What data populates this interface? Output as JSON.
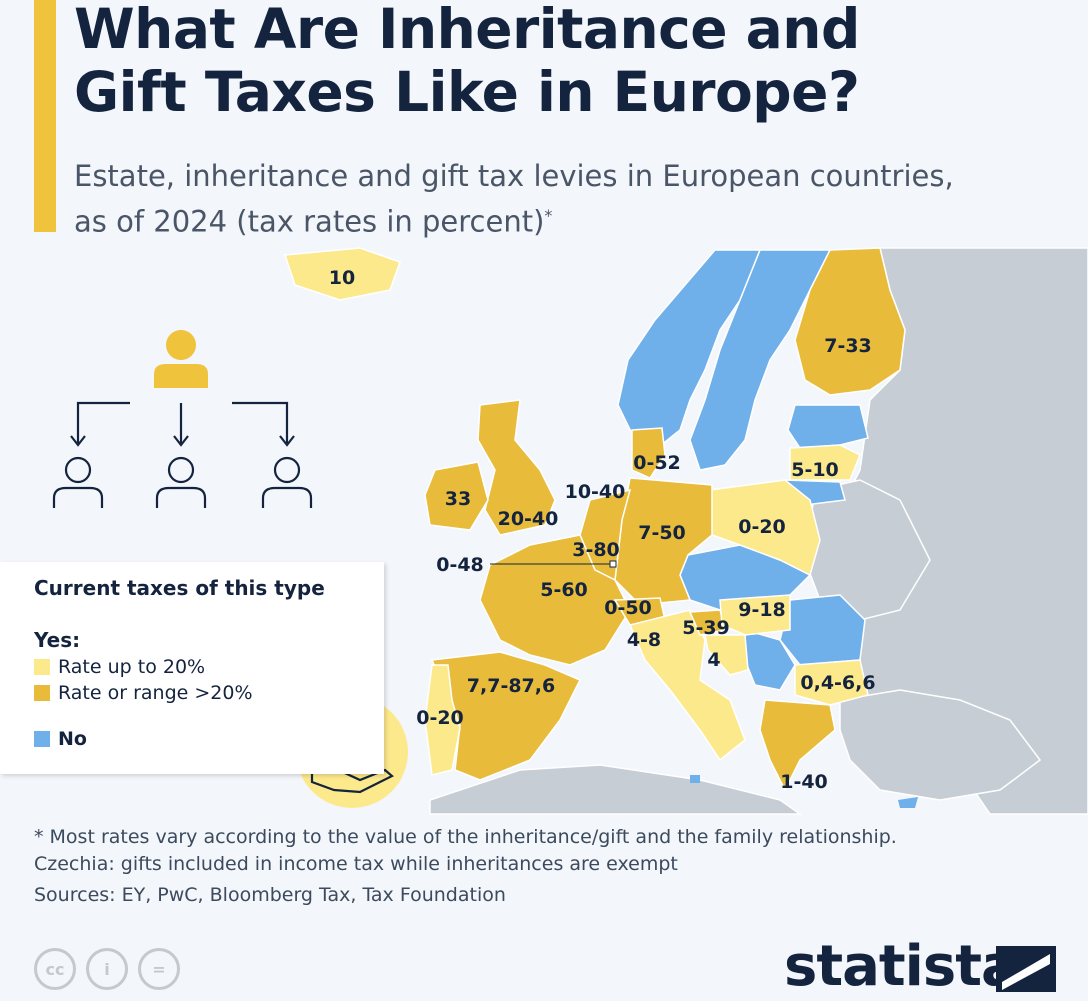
{
  "title_lines": [
    "What Are Inheritance and",
    "Gift Taxes Like in Europe?"
  ],
  "subtitle_lines": [
    "Estate, inheritance and gift tax levies in European countries,",
    "as of 2024 (tax rates in percent)"
  ],
  "subtitle_mark": "*",
  "colors": {
    "accent": "#f0c33c",
    "rate_up_to_20": "#fce98c",
    "rate_over_20": "#e8bb3a",
    "no_tax": "#6fb0ea",
    "other_land": "#c6cdd5",
    "sea": "#f3f6fa",
    "text": "#14243e"
  },
  "icons": [
    "person-icon",
    "inheritance-arrows-icon",
    "euro-coin-icon",
    "open-hand-icon",
    "cc-icon",
    "attribution-icon",
    "no-derivatives-icon",
    "statista-logo-icon"
  ],
  "map": {
    "labels": [
      {
        "country": "Iceland",
        "text": "10"
      },
      {
        "country": "Finland",
        "text": "7-33"
      },
      {
        "country": "Denmark",
        "text": "0-52"
      },
      {
        "country": "Latvia",
        "text": "5-10"
      },
      {
        "country": "Ireland",
        "text": "33"
      },
      {
        "country": "Netherlands",
        "text": "10-40"
      },
      {
        "country": "United Kingdom",
        "text": "20-40"
      },
      {
        "country": "Germany",
        "text": "7-50"
      },
      {
        "country": "Poland",
        "text": "0-20"
      },
      {
        "country": "Belgium",
        "text": "3-80"
      },
      {
        "country": "Luxembourg",
        "text": "0-48"
      },
      {
        "country": "France",
        "text": "5-60"
      },
      {
        "country": "Switzerland",
        "text": "0-50"
      },
      {
        "country": "Hungary",
        "text": "9-18"
      },
      {
        "country": "Italy",
        "text": "4-8"
      },
      {
        "country": "Slovenia",
        "text": "5-39"
      },
      {
        "country": "Croatia",
        "text": "4"
      },
      {
        "country": "Bulgaria",
        "text": "0,4-6,6"
      },
      {
        "country": "Spain",
        "text": "7,7-87,6"
      },
      {
        "country": "Portugal",
        "text": "0-20"
      },
      {
        "country": "Greece",
        "text": "1-40"
      }
    ]
  },
  "legend": {
    "title": "Current taxes of this type",
    "yes_label": "Yes:",
    "items": [
      {
        "label": "Rate up to 20%"
      },
      {
        "label": "Rate or range >20%"
      }
    ],
    "no_label": "No"
  },
  "footnote_lines": [
    "* Most rates vary according to the value of the inheritance/gift and the family relationship.",
    "Czechia: gifts included in income tax while inheritances are exempt"
  ],
  "sources": "Sources: EY, PwC, Bloomberg Tax, Tax Foundation",
  "license_icons": [
    "cc",
    "i",
    "="
  ],
  "brand": "statista"
}
